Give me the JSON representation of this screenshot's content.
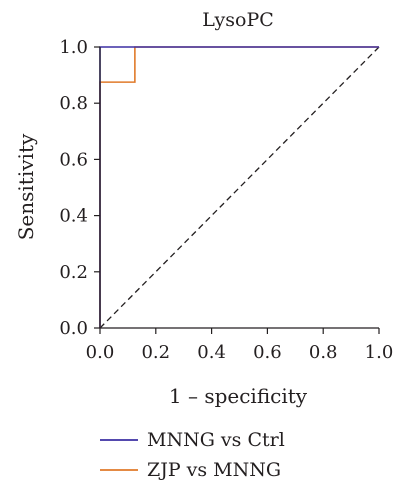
{
  "chart_data": {
    "type": "line",
    "title": "LysoPC",
    "xlabel": "1 – specificity",
    "ylabel": "Sensitivity",
    "xlim": [
      0,
      1
    ],
    "ylim": [
      0,
      1
    ],
    "x_ticks": [
      "0.0",
      "0.2",
      "0.4",
      "0.6",
      "0.8",
      "1.0"
    ],
    "y_ticks": [
      "0.0",
      "0.2",
      "0.4",
      "0.6",
      "0.8",
      "1.0"
    ],
    "grid": false,
    "legend_position": "bottom-left",
    "series": [
      {
        "name": "MNNG vs Ctrl",
        "color": "#3b2fa3",
        "points": [
          [
            0,
            0
          ],
          [
            0,
            1
          ],
          [
            1,
            1
          ]
        ]
      },
      {
        "name": "ZJP vs MNNG",
        "color": "#e07a2a",
        "points": [
          [
            0,
            0
          ],
          [
            0,
            0.875
          ],
          [
            0.125,
            0.875
          ],
          [
            0.125,
            1
          ],
          [
            1,
            1
          ]
        ]
      }
    ],
    "reference_line": {
      "style": "dashed",
      "color": "#231f20",
      "points": [
        [
          0,
          0
        ],
        [
          1,
          1
        ]
      ]
    }
  }
}
